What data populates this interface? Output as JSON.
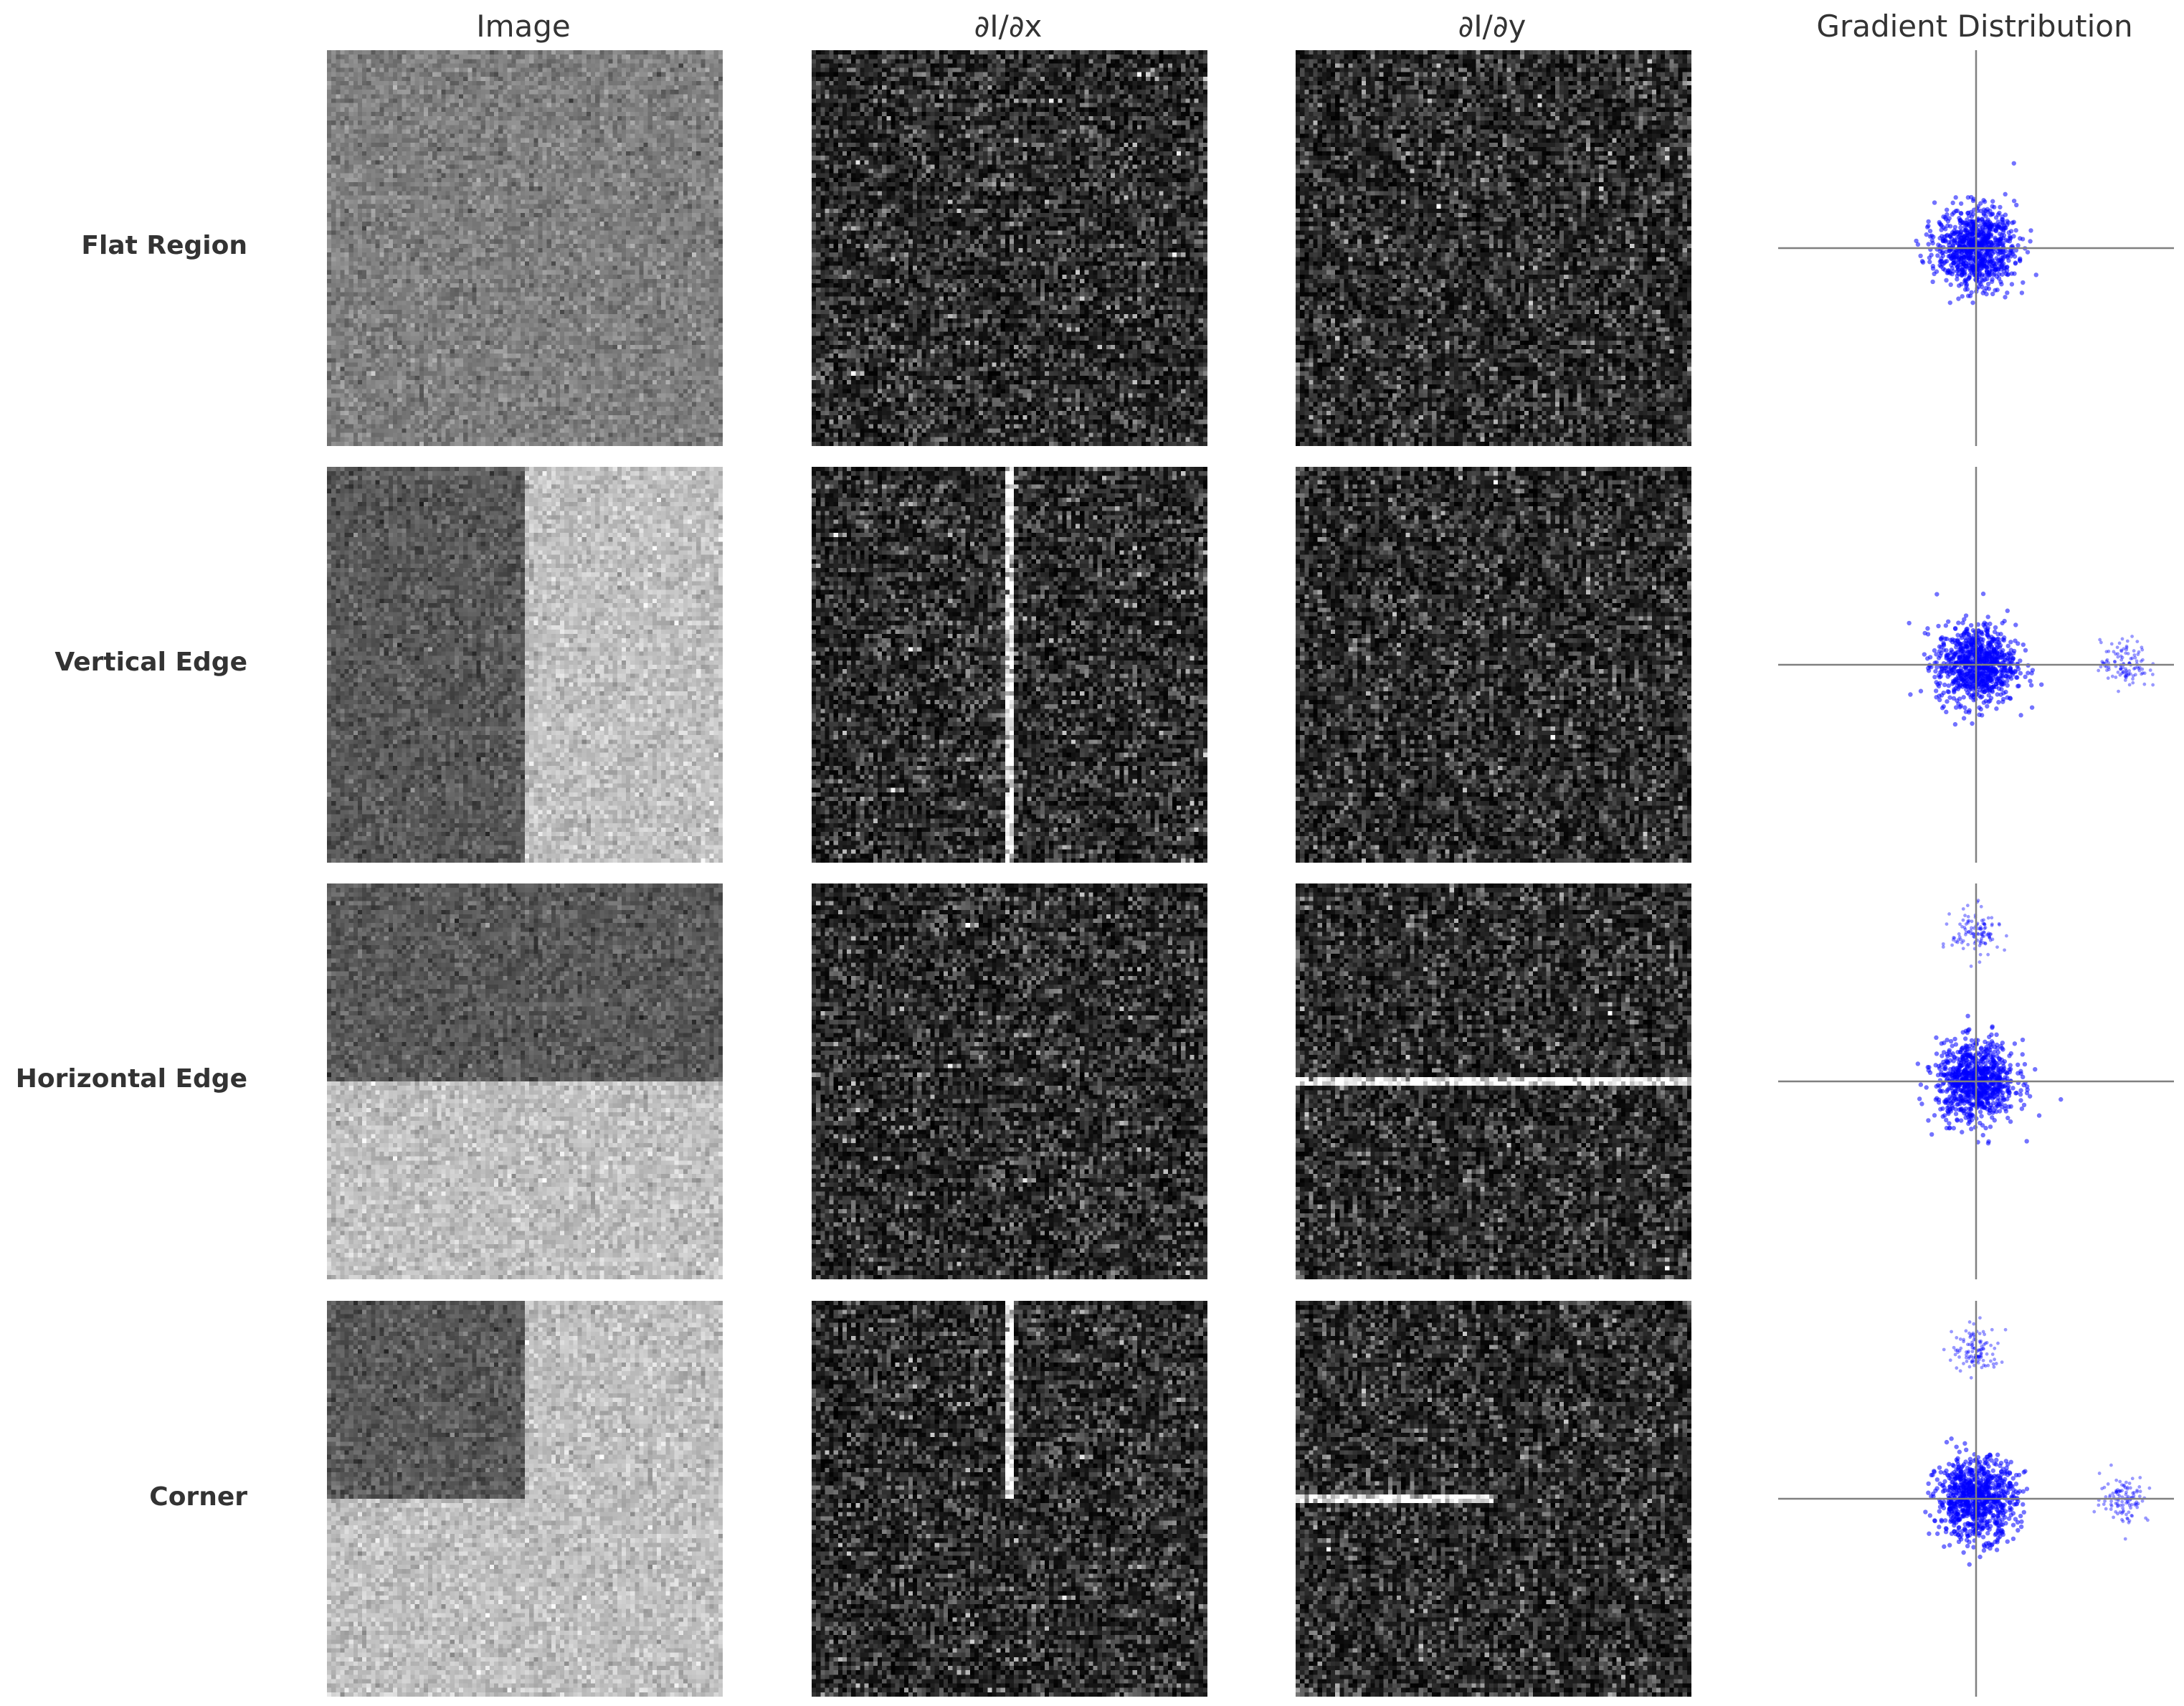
{
  "column_titles": [
    "Image",
    "∂I/∂x",
    "∂I/∂y",
    "Gradient Distribution"
  ],
  "row_labels": [
    "Flat Region",
    "Vertical Edge",
    "Horizontal Edge",
    "Corner"
  ],
  "colors": {
    "scatter_points": "#0000ff",
    "axis_lines": "#808080",
    "text": "#333333"
  },
  "chart_data": {
    "type": "heatmap",
    "grid": {
      "rows": 4,
      "columns": 4
    },
    "image_panels": [
      {
        "row": "Flat Region",
        "pattern": "uniform",
        "mean_intensity": 0.5
      },
      {
        "row": "Vertical Edge",
        "pattern": "vertical split",
        "left_intensity": 0.35,
        "right_intensity": 0.75
      },
      {
        "row": "Horizontal Edge",
        "pattern": "horizontal split",
        "top_intensity": 0.35,
        "bottom_intensity": 0.75
      },
      {
        "row": "Corner",
        "pattern": "dark top-left quadrant",
        "quadrant_intensity": 0.35,
        "background_intensity": 0.75
      }
    ],
    "gradient_panels": {
      "dx": [
        {
          "row": "Flat Region",
          "edge": "none"
        },
        {
          "row": "Vertical Edge",
          "edge": "full vertical line at center"
        },
        {
          "row": "Horizontal Edge",
          "edge": "none"
        },
        {
          "row": "Corner",
          "edge": "vertical line, top half"
        }
      ],
      "dy": [
        {
          "row": "Flat Region",
          "edge": "none"
        },
        {
          "row": "Vertical Edge",
          "edge": "none"
        },
        {
          "row": "Horizontal Edge",
          "edge": "full horizontal line at center"
        },
        {
          "row": "Corner",
          "edge": "horizontal line, left half"
        }
      ]
    },
    "scatter_panels": {
      "type": "scatter",
      "x_label": "",
      "y_label": "",
      "x_range": [
        -1,
        1
      ],
      "y_range": [
        -1,
        1
      ],
      "clusters": [
        {
          "row": "Flat Region",
          "centers": [
            {
              "x": 0,
              "y": 0,
              "spread": 0.1
            }
          ]
        },
        {
          "row": "Vertical Edge",
          "centers": [
            {
              "x": 0,
              "y": 0,
              "spread": 0.1
            },
            {
              "x": 0.75,
              "y": 0,
              "spread": 0.06
            }
          ]
        },
        {
          "row": "Horizontal Edge",
          "centers": [
            {
              "x": 0,
              "y": 0,
              "spread": 0.1
            },
            {
              "x": 0,
              "y": 0.75,
              "spread": 0.06
            }
          ]
        },
        {
          "row": "Corner",
          "centers": [
            {
              "x": 0,
              "y": 0,
              "spread": 0.1
            },
            {
              "x": 0.75,
              "y": 0,
              "spread": 0.06
            },
            {
              "x": 0,
              "y": 0.75,
              "spread": 0.06
            }
          ]
        }
      ]
    }
  }
}
